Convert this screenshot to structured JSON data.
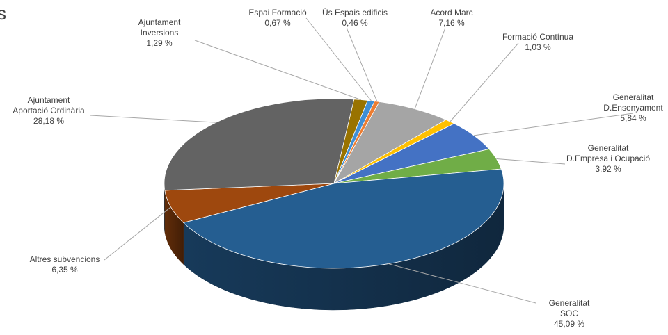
{
  "chart_data": {
    "type": "pie",
    "title": "",
    "edge_text": "s",
    "slices": [
      {
        "category": "Generalitat D.Ensenyament",
        "lines": [
          "Generalitat",
          "D.Ensenyament"
        ],
        "value": 5.84,
        "value_label": "5,84 %",
        "color": "#4472c4"
      },
      {
        "category": "Generalitat D.Empresa i Ocupació",
        "lines": [
          "Generalitat",
          "D.Empresa i Ocupació"
        ],
        "value": 3.92,
        "value_label": "3,92 %",
        "color": "#70ad47"
      },
      {
        "category": "Generalitat SOC",
        "lines": [
          "Generalitat",
          "SOC"
        ],
        "value": 45.09,
        "value_label": "45,09 %",
        "color": "#255e91"
      },
      {
        "category": "Altres subvencions",
        "lines": [
          "Altres subvencions"
        ],
        "value": 6.35,
        "value_label": "6,35 %",
        "color": "#9e480e"
      },
      {
        "category": "Ajuntament Aportació Ordinària",
        "lines": [
          "Ajuntament",
          "Aportació Ordinària"
        ],
        "value": 28.18,
        "value_label": "28,18 %",
        "color": "#636363"
      },
      {
        "category": "Ajuntament Inversions",
        "lines": [
          "Ajuntament",
          "Inversions"
        ],
        "value": 1.29,
        "value_label": "1,29 %",
        "color": "#997300"
      },
      {
        "category": "Espai Formació",
        "lines": [
          "Espai Formació"
        ],
        "value": 0.67,
        "value_label": "0,67 %",
        "color": "#3f8fd6"
      },
      {
        "category": "Ús Espais edificis",
        "lines": [
          "Ús Espais edificis"
        ],
        "value": 0.46,
        "value_label": "0,46 %",
        "color": "#ed7d31"
      },
      {
        "category": "Acord Marc",
        "lines": [
          "Acord Marc"
        ],
        "value": 7.16,
        "value_label": "7,16 %",
        "color": "#a5a5a5"
      },
      {
        "category": "Formació Contínua",
        "lines": [
          "Formació Contínua"
        ],
        "value": 1.03,
        "value_label": "1,03 %",
        "color": "#ffc000"
      }
    ]
  }
}
